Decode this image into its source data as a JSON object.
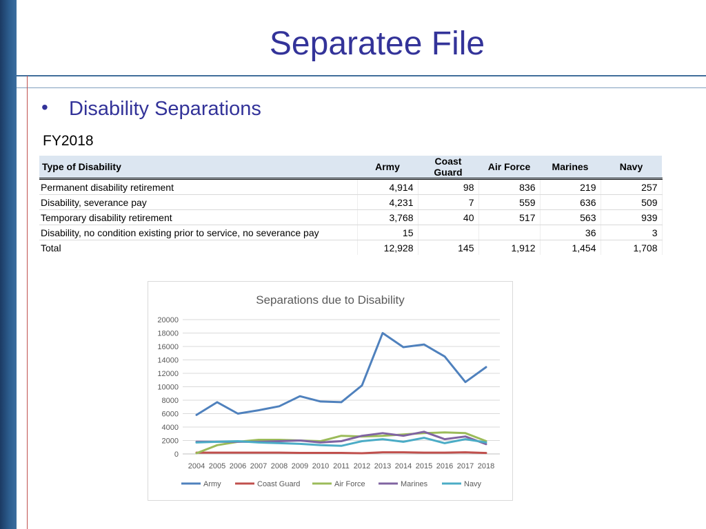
{
  "slide": {
    "title": "Separatee File",
    "bullet": "Disability Separations",
    "bullet_symbol": "•",
    "subheading": "FY2018"
  },
  "table": {
    "headers": [
      "Type of Disability",
      "Army",
      "Coast Guard",
      "Air Force",
      "Marines",
      "Navy"
    ],
    "rows": [
      [
        "Permanent disability retirement",
        "4,914",
        "98",
        "836",
        "219",
        "257"
      ],
      [
        "Disability, severance pay",
        "4,231",
        "7",
        "559",
        "636",
        "509"
      ],
      [
        "Temporary disability retirement",
        "3,768",
        "40",
        "517",
        "563",
        "939"
      ],
      [
        "Disability, no condition existing prior to service, no severance pay",
        "15",
        "",
        "",
        "36",
        "3"
      ],
      [
        "Total",
        "12,928",
        "145",
        "1,912",
        "1,454",
        "1,708"
      ]
    ]
  },
  "chart_data": {
    "type": "line",
    "title": "Separations due to Disability",
    "xlabel": "",
    "ylabel": "",
    "ylim": [
      0,
      20000
    ],
    "yticks": [
      0,
      2000,
      4000,
      6000,
      8000,
      10000,
      12000,
      14000,
      16000,
      18000,
      20000
    ],
    "x": [
      "2004",
      "2005",
      "2006",
      "2007",
      "2008",
      "2009",
      "2010",
      "2011",
      "2012",
      "2013",
      "2014",
      "2015",
      "2016",
      "2017",
      "2018"
    ],
    "grid": true,
    "legend_position": "bottom",
    "series": [
      {
        "name": "Army",
        "color": "#4f81bd",
        "values": [
          5800,
          7700,
          6000,
          6500,
          7100,
          8600,
          7800,
          7700,
          10200,
          18000,
          15900,
          16300,
          14500,
          10700,
          12928
        ]
      },
      {
        "name": "Coast Guard",
        "color": "#c0504d",
        "values": [
          200,
          200,
          200,
          200,
          200,
          150,
          150,
          150,
          100,
          250,
          250,
          200,
          200,
          250,
          145
        ]
      },
      {
        "name": "Air Force",
        "color": "#9bbb59",
        "values": [
          100,
          1300,
          1800,
          2100,
          2100,
          2000,
          1900,
          2700,
          2600,
          2700,
          2900,
          3100,
          3200,
          3100,
          1912
        ]
      },
      {
        "name": "Marines",
        "color": "#8064a2",
        "values": [
          1800,
          1800,
          1800,
          1800,
          1900,
          2000,
          1700,
          1900,
          2700,
          3100,
          2700,
          3300,
          2200,
          2600,
          1454
        ]
      },
      {
        "name": "Navy",
        "color": "#4bacc6",
        "values": [
          1700,
          1800,
          1900,
          1700,
          1600,
          1500,
          1300,
          1200,
          1900,
          2200,
          1800,
          2400,
          1600,
          2200,
          1708
        ]
      }
    ]
  }
}
